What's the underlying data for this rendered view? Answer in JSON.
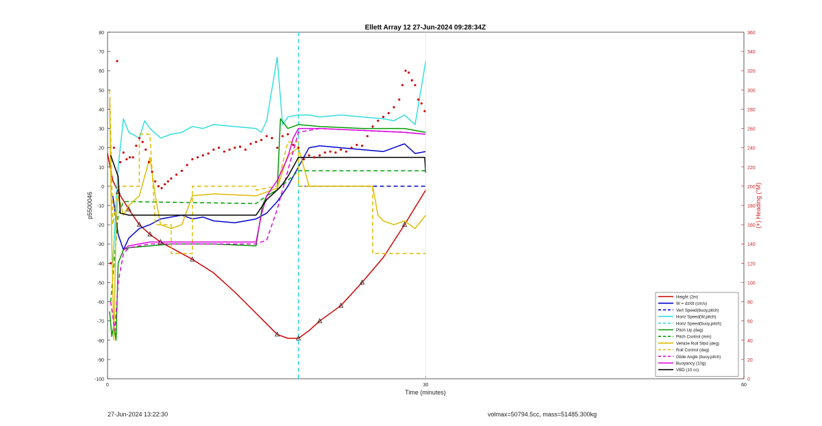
{
  "chart_data": {
    "type": "line",
    "title": "Ellett Array 12 27-Jun-2024 09:28:34Z",
    "xlabel": "Time (minutes)",
    "ylabel": "p5500046",
    "y2label": "(+) Heading (°M)",
    "xlim": [
      0,
      60
    ],
    "ylim": [
      -100,
      80
    ],
    "y2lim": [
      0,
      360
    ],
    "xticks": [
      "0",
      "30",
      "60"
    ],
    "yticks": [
      "-100",
      "-90",
      "-80",
      "-70",
      "-60",
      "-50",
      "-40",
      "-30",
      "-20",
      "-10",
      "0",
      "10",
      "20",
      "30",
      "40",
      "50",
      "60",
      "70",
      "80"
    ],
    "y2ticks": [
      "0",
      "20",
      "40",
      "60",
      "80",
      "100",
      "120",
      "140",
      "160",
      "180",
      "200",
      "220",
      "240",
      "260",
      "280",
      "300",
      "320",
      "340",
      "360"
    ],
    "legend_position": "bottom-right",
    "series": [
      {
        "name": "Height (2m)",
        "color": "#cc0000",
        "style": "solid",
        "x": [
          0,
          0.5,
          1,
          2,
          3,
          4,
          5,
          6,
          8,
          10,
          12,
          14,
          16,
          17,
          18,
          19,
          20,
          22,
          24,
          26,
          28,
          30
        ],
        "y": [
          17,
          3,
          -3,
          -12,
          -20,
          -25,
          -29,
          -32,
          -38,
          -45,
          -55,
          -66,
          -77,
          -79,
          -79,
          -75,
          -70,
          -62,
          -50,
          -37,
          -20,
          -2
        ]
      },
      {
        "name": "W = dz/dt (cm/s)",
        "color": "#0000cc",
        "style": "solid",
        "x": [
          0.5,
          1,
          1.5,
          2,
          3,
          4,
          5,
          6,
          7,
          8,
          9,
          10,
          12,
          14,
          15,
          16,
          17,
          18,
          19,
          20,
          22,
          24,
          26,
          27,
          28,
          29,
          30
        ],
        "y": [
          -5,
          -25,
          -33,
          -27,
          -22,
          -20,
          -17,
          -16,
          -15,
          -17,
          -16,
          -18,
          -19,
          -17,
          -14,
          -8,
          0,
          10,
          20,
          21,
          20,
          19,
          18,
          20,
          22,
          17,
          18
        ]
      },
      {
        "name": "Vert Speed(buoy,pitch)",
        "color": "#0000cc",
        "style": "dashed",
        "x": [
          18,
          18,
          18.1,
          30
        ],
        "y": [
          -100,
          0,
          0,
          0
        ]
      },
      {
        "name": "Horiz Speed(W,pitch)",
        "color": "#33dddd",
        "style": "solid",
        "x": [
          0.5,
          1,
          1.5,
          2,
          3,
          3.5,
          4,
          5,
          6,
          7,
          8,
          9,
          10,
          12,
          14,
          14.5,
          15,
          16,
          16.5,
          17,
          18,
          19,
          20,
          22,
          24,
          26,
          27,
          28,
          29,
          30
        ],
        "y": [
          -40,
          10,
          35,
          28,
          25,
          34,
          30,
          25,
          27,
          28,
          31,
          30,
          32,
          31,
          30,
          28,
          34,
          67,
          32,
          36,
          37,
          37,
          36,
          37,
          36,
          35,
          34,
          37,
          32,
          65
        ]
      },
      {
        "name": "Horiz Speed(buoy,pitch)",
        "color": "#33dddd",
        "style": "dashed",
        "x": [
          18,
          18
        ],
        "y": [
          -100,
          80
        ]
      },
      {
        "name": "Pitch Up (deg)",
        "color": "#009900",
        "style": "solid",
        "x": [
          0.2,
          0.4,
          0.6,
          0.8,
          1,
          1.5,
          2,
          4,
          6,
          10,
          14,
          14.6,
          15,
          16,
          16.3,
          17,
          18,
          20,
          24,
          28,
          30
        ],
        "y": [
          -65,
          -78,
          -72,
          -80,
          -40,
          -33,
          -32,
          -31,
          -30,
          -30,
          -31,
          -10,
          -5,
          -2,
          35,
          30,
          32,
          31,
          30,
          30,
          28
        ]
      },
      {
        "name": "Pitch Control (mm)",
        "color": "#009900",
        "style": "dashed",
        "x": [
          0.3,
          1,
          1.5,
          2,
          14,
          15,
          16,
          17,
          18,
          19,
          20,
          30
        ],
        "y": [
          -60,
          -15,
          -8,
          -8,
          -9,
          -5,
          -2,
          3,
          8,
          8,
          8,
          8
        ]
      },
      {
        "name": "Vehicle Roll Stbd (deg)",
        "color": "#ddbb00",
        "style": "solid",
        "x": [
          0.2,
          0.4,
          0.6,
          0.8,
          1,
          1.5,
          2,
          3,
          4,
          4.5,
          5,
          6,
          7,
          8,
          10,
          14,
          15,
          16,
          17,
          18,
          19,
          20,
          22,
          25,
          25.5,
          26,
          27,
          28,
          29,
          30
        ],
        "y": [
          45,
          -30,
          -80,
          -20,
          -5,
          -15,
          -10,
          -5,
          15,
          -5,
          -20,
          -22,
          -20,
          -5,
          -4,
          -5,
          -3,
          -1,
          16,
          20,
          0,
          0,
          0,
          0,
          -15,
          -18,
          -20,
          -18,
          -22,
          -15
        ]
      },
      {
        "name": "Roll Control (deg)",
        "color": "#ddbb00",
        "style": "dashed",
        "x": [
          0.2,
          0.5,
          1,
          3,
          3,
          4,
          4.5,
          4.5,
          6,
          6,
          8,
          8,
          14,
          14,
          16,
          17,
          18,
          18,
          25,
          25,
          27.5,
          27.5,
          30
        ],
        "y": [
          50,
          -20,
          0,
          0,
          27,
          27,
          -20,
          -20,
          -20,
          -35,
          -35,
          0,
          0,
          -2,
          0,
          23,
          23,
          0,
          0,
          -35,
          -35,
          -35,
          -35
        ]
      },
      {
        "name": "Glide Angle (buoy,pitch)",
        "color": "#dd00dd",
        "style": "dashed",
        "x": [
          0.3,
          0.7,
          1,
          1.5,
          2,
          4,
          8,
          14,
          15,
          16,
          17,
          18,
          20,
          24,
          28,
          30
        ],
        "y": [
          -60,
          -75,
          -50,
          -35,
          -32,
          -30,
          -30,
          -30,
          -28,
          -12,
          8,
          28,
          30,
          29,
          28,
          27
        ]
      },
      {
        "name": "Buoyancy (10g)",
        "color": "#dd00dd",
        "style": "solid",
        "x": [
          1.5,
          2,
          4,
          8,
          14,
          14.5,
          15,
          16,
          17,
          17.5,
          18,
          20,
          24,
          28,
          30
        ],
        "y": [
          -33,
          -31,
          -29,
          -29,
          -29,
          -15,
          -5,
          3,
          15,
          25,
          30,
          30,
          29,
          28,
          27
        ]
      },
      {
        "name": "VBD (10 cc)",
        "color": "#000000",
        "style": "solid",
        "x": [
          0.3,
          1,
          1.2,
          2,
          6,
          10,
          14,
          15,
          16,
          16.5,
          17,
          17.5,
          18,
          18.2,
          22,
          26,
          29.9,
          30
        ],
        "y": [
          16,
          5,
          -14,
          -15,
          -15,
          -15,
          -15,
          -7,
          -2,
          1,
          5,
          10,
          15,
          15,
          15,
          15,
          15,
          7
        ]
      },
      {
        "name": "Heading",
        "color": "#cc0000",
        "style": "dots",
        "axis": "right",
        "x": [
          0.3,
          0.6,
          0.9,
          1.2,
          1.5,
          1.8,
          2.1,
          2.4,
          2.7,
          3.0,
          3.3,
          3.6,
          3.9,
          4.2,
          4.5,
          4.8,
          5.1,
          5.4,
          5.7,
          6.0,
          6.5,
          7.0,
          7.5,
          8.0,
          8.5,
          9.0,
          9.5,
          10,
          10.5,
          11,
          11.5,
          12,
          12.5,
          13,
          13.5,
          14,
          14.5,
          15,
          15.5,
          16,
          16.5,
          17,
          17.5,
          18,
          18.5,
          19,
          19.5,
          20,
          20.5,
          21,
          21.5,
          22,
          22.5,
          23,
          23.5,
          24,
          24.5,
          25,
          25.5,
          26,
          26.5,
          27,
          27.5,
          27.8,
          28.1,
          28.4,
          28.7,
          29,
          29.3,
          29.6,
          29.9
        ],
        "y": [
          120,
          240,
          330,
          225,
          235,
          228,
          230,
          230,
          242,
          250,
          246,
          238,
          225,
          215,
          205,
          200,
          198,
          202,
          205,
          208,
          212,
          216,
          222,
          228,
          230,
          232,
          234,
          238,
          240,
          236,
          238,
          240,
          241,
          238,
          244,
          246,
          248,
          252,
          250,
          240,
          252,
          254,
          243,
          240,
          228,
          232,
          230,
          232,
          235,
          236,
          235,
          238,
          236,
          240,
          243,
          242,
          252,
          262,
          268,
          272,
          276,
          282,
          290,
          305,
          320,
          318,
          310,
          305,
          290,
          286,
          278
        ]
      }
    ]
  },
  "footer": {
    "left": "27-Jun-2024 13:22:30",
    "right": "volmax=50794.5cc, mass=51485.300kg"
  }
}
